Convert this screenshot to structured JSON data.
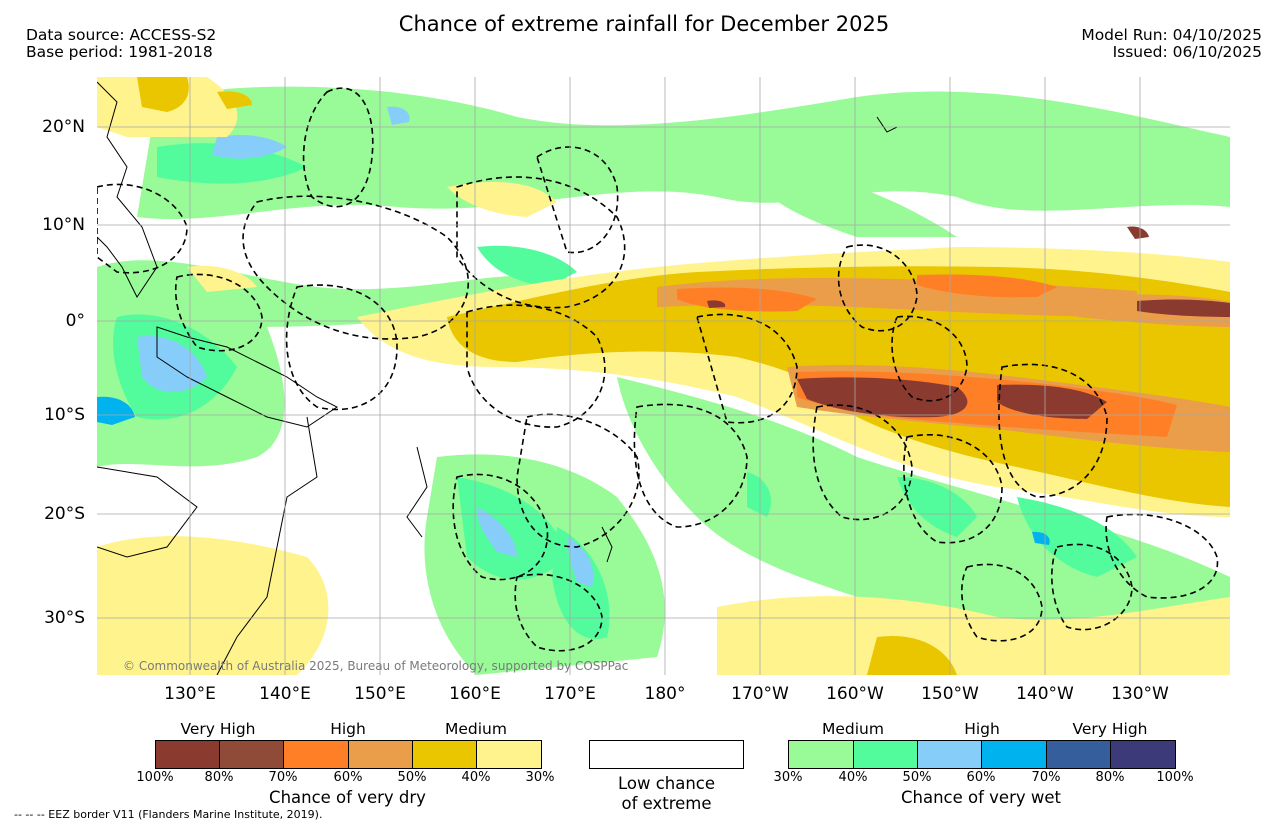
{
  "header": {
    "title": "Chance of extreme rainfall for December 2025",
    "data_source": "Data source: ACCESS-S2",
    "base_period": "Base period: 1981-2018",
    "model_run": "Model Run: 04/10/2025",
    "issued": "Issued: 06/10/2025"
  },
  "map": {
    "lat_labels": [
      "20°N",
      "10°N",
      "0°",
      "10°S",
      "20°S",
      "30°S"
    ],
    "lon_labels": [
      "130°E",
      "140°E",
      "150°E",
      "160°E",
      "170°E",
      "180°",
      "170°W",
      "160°W",
      "150°W",
      "140°W",
      "130°W"
    ],
    "copyright": "© Commonwealth of Australia 2025, Bureau of Meteorology, supported by COSPPac"
  },
  "legend": {
    "dry": {
      "categories": [
        "Very High",
        "High",
        "Medium"
      ],
      "ticks": [
        "100%",
        "80%",
        "70%",
        "60%",
        "50%",
        "40%",
        "30%"
      ],
      "colors": [
        "#8b3a2f",
        "#8f4a38",
        "#ff7f27",
        "#eb9e4a",
        "#e9c600",
        "#fff38e"
      ],
      "title": "Chance of very dry"
    },
    "low": {
      "line1": "Low chance",
      "line2": "of extreme"
    },
    "wet": {
      "categories": [
        "Medium",
        "High",
        "Very High"
      ],
      "ticks": [
        "30%",
        "40%",
        "50%",
        "60%",
        "70%",
        "80%",
        "100%"
      ],
      "colors": [
        "#98fb98",
        "#52fc9c",
        "#86cdfa",
        "#00b2ee",
        "#345e9c",
        "#3d3a7a"
      ],
      "title": "Chance of very wet"
    }
  },
  "footer": {
    "eez_note": "--  --  -- EEZ border V11 (Flanders Marine Institute, 2019)."
  }
}
